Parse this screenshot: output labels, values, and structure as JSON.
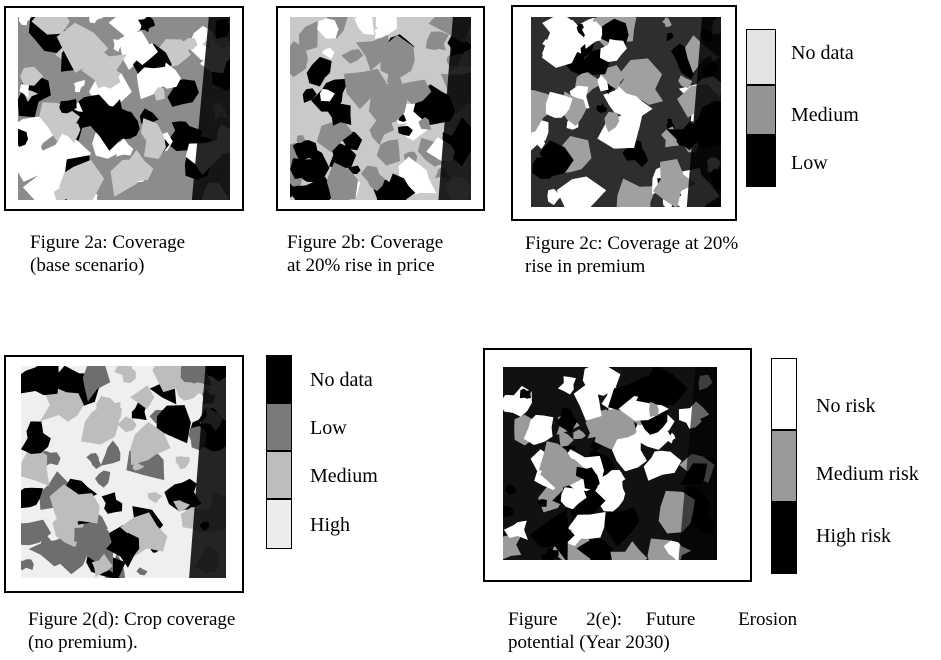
{
  "figures": [
    {
      "id": "2a",
      "caption": [
        "Figure 2a: Coverage",
        "(base scenario)"
      ],
      "base_color": "#8c8c8c",
      "patch_colors": [
        "#ffffff",
        "#000000",
        "#c8c8c8"
      ]
    },
    {
      "id": "2b",
      "caption": [
        "Figure 2b: Coverage",
        "at 20%  rise in price"
      ],
      "base_color": "#c9c9c9",
      "patch_colors": [
        "#ffffff",
        "#000000",
        "#8c8c8c"
      ]
    },
    {
      "id": "2c",
      "caption": [
        "Figure 2c: Coverage at 20%",
        "rise in premium"
      ],
      "base_color": "#2e2e2e",
      "patch_colors": [
        "#ffffff",
        "#000000",
        "#a0a0a0"
      ]
    },
    {
      "id": "2d",
      "caption": [
        "Figure 2(d): Crop coverage",
        "(no premium)."
      ],
      "base_color": "#efefef",
      "patch_colors": [
        "#000000",
        "#6e6e6e",
        "#bdbdbd"
      ]
    },
    {
      "id": "2e",
      "caption": [
        "Figure      2(e):     Future         Erosion",
        "potential (Year 2030)"
      ],
      "base_color": "#111111",
      "patch_colors": [
        "#ffffff",
        "#000000",
        "#9a9a9a"
      ]
    }
  ],
  "legends": {
    "top": [
      {
        "label": "No data",
        "color": "#e3e3e3"
      },
      {
        "label": "Medium",
        "color": "#949494"
      },
      {
        "label": "Low",
        "color": "#000000"
      }
    ],
    "d": [
      {
        "label": "No data",
        "color": "#000000"
      },
      {
        "label": "Low",
        "color": "#7a7a7a"
      },
      {
        "label": "Medium",
        "color": "#bdbdbd"
      },
      {
        "label": "High",
        "color": "#ececec"
      }
    ],
    "e": [
      {
        "label": "No risk",
        "color": "#ffffff"
      },
      {
        "label": "Medium risk",
        "color": "#9a9a9a"
      },
      {
        "label": "High risk",
        "color": "#000000"
      }
    ]
  }
}
